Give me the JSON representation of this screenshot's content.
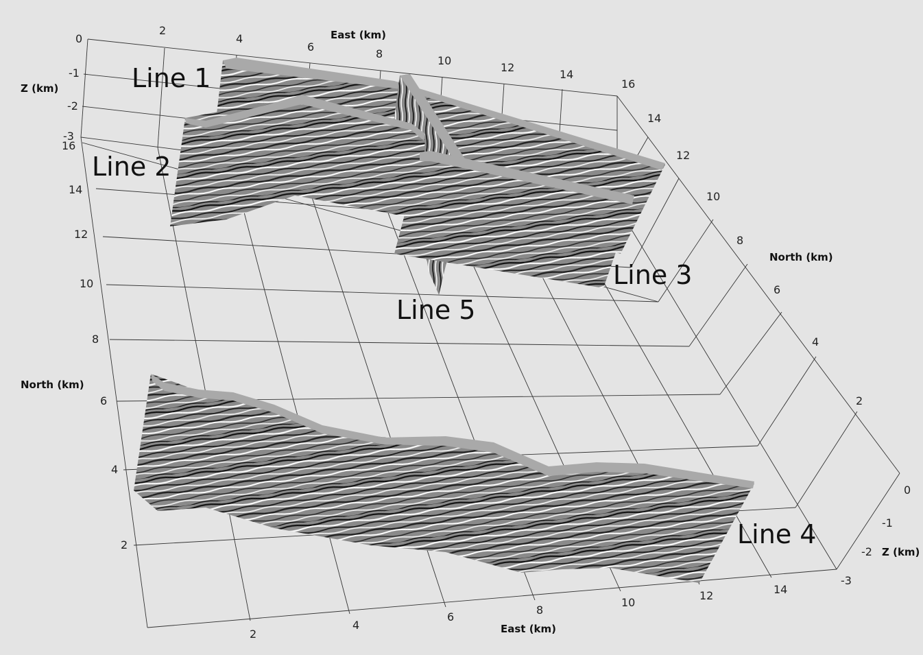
{
  "axes": {
    "east_title_top": "East (km)",
    "east_title_bottom": "East (km)",
    "north_title_left": "North (km)",
    "north_title_right": "North (km)",
    "z_title_left": "Z (km)",
    "z_title_right": "Z (km)",
    "east_ticks_top": [
      "2",
      "4",
      "6",
      "8",
      "10",
      "12",
      "14",
      "16"
    ],
    "east_ticks_bottom": [
      "2",
      "4",
      "6",
      "8",
      "10",
      "12",
      "14"
    ],
    "north_ticks_left": [
      "16",
      "14",
      "12",
      "10",
      "8",
      "6",
      "4",
      "2"
    ],
    "north_ticks_right": [
      "14",
      "12",
      "10",
      "8",
      "6",
      "4",
      "2"
    ],
    "z_ticks_left": [
      "0",
      "-1",
      "-2",
      "-3"
    ],
    "z_ticks_right": [
      "0",
      "-1",
      "-2",
      "-3"
    ]
  },
  "lines": [
    {
      "label": "Line 1"
    },
    {
      "label": "Line 2"
    },
    {
      "label": "Line 3"
    },
    {
      "label": "Line 4"
    },
    {
      "label": "Line 5"
    }
  ],
  "colors": {
    "background": "#e4e4e4",
    "grid": "#333333",
    "section_top": "#a9a9a9"
  }
}
